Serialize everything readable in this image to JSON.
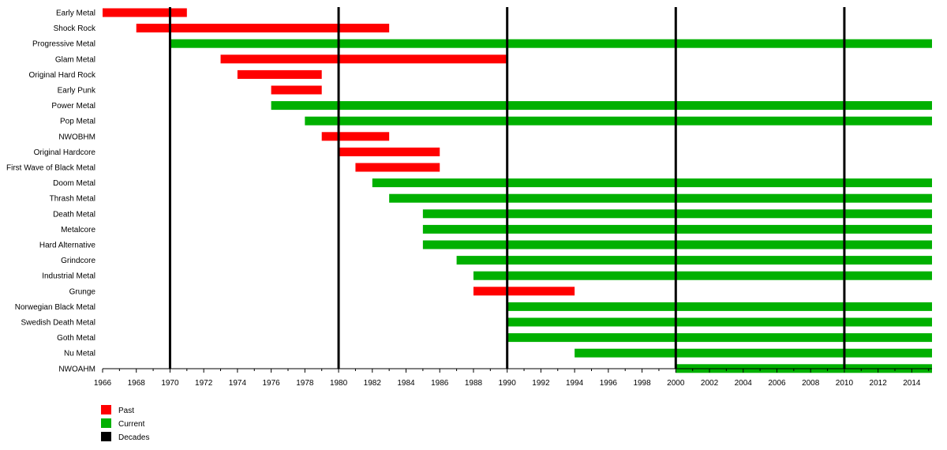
{
  "chart_data": {
    "type": "bar",
    "title": "",
    "xlabel": "",
    "ylabel": "",
    "xlim": [
      1966,
      2015.2
    ],
    "x_ticks": [
      1966,
      1968,
      1970,
      1972,
      1974,
      1976,
      1978,
      1980,
      1982,
      1984,
      1986,
      1988,
      1990,
      1992,
      1994,
      1996,
      1998,
      2000,
      2002,
      2004,
      2006,
      2008,
      2010,
      2012,
      2014
    ],
    "decade_lines": [
      1970,
      1980,
      1990,
      2000,
      2010
    ],
    "grid": false,
    "legend_position": "bottom-left",
    "colors": {
      "Past": "#ff0000",
      "Current": "#00b000",
      "Decades": "#000000"
    },
    "legend": [
      {
        "label": "Past",
        "color": "#ff0000"
      },
      {
        "label": "Current",
        "color": "#00b000"
      },
      {
        "label": "Decades",
        "color": "#000000"
      }
    ],
    "bars": [
      {
        "label": "Early Metal",
        "start": 1966,
        "end": 1971,
        "status": "Past"
      },
      {
        "label": "Shock Rock",
        "start": 1968,
        "end": 1983,
        "status": "Past"
      },
      {
        "label": "Progressive Metal",
        "start": 1970,
        "end": 2015.2,
        "status": "Current"
      },
      {
        "label": "Glam Metal",
        "start": 1973,
        "end": 1990,
        "status": "Past"
      },
      {
        "label": "Original Hard Rock",
        "start": 1974,
        "end": 1979,
        "status": "Past"
      },
      {
        "label": "Early Punk",
        "start": 1976,
        "end": 1979,
        "status": "Past"
      },
      {
        "label": "Power Metal",
        "start": 1976,
        "end": 2015.2,
        "status": "Current"
      },
      {
        "label": "Pop Metal",
        "start": 1978,
        "end": 2015.2,
        "status": "Current"
      },
      {
        "label": "NWOBHM",
        "start": 1979,
        "end": 1983,
        "status": "Past"
      },
      {
        "label": "Original Hardcore",
        "start": 1980,
        "end": 1986,
        "status": "Past"
      },
      {
        "label": "First Wave of Black Metal",
        "start": 1981,
        "end": 1986,
        "status": "Past"
      },
      {
        "label": "Doom Metal",
        "start": 1982,
        "end": 2015.2,
        "status": "Current"
      },
      {
        "label": "Thrash Metal",
        "start": 1983,
        "end": 2015.2,
        "status": "Current"
      },
      {
        "label": "Death Metal",
        "start": 1985,
        "end": 2015.2,
        "status": "Current"
      },
      {
        "label": "Metalcore",
        "start": 1985,
        "end": 2015.2,
        "status": "Current"
      },
      {
        "label": "Hard Alternative",
        "start": 1985,
        "end": 2015.2,
        "status": "Current"
      },
      {
        "label": "Grindcore",
        "start": 1987,
        "end": 2015.2,
        "status": "Current"
      },
      {
        "label": "Industrial Metal",
        "start": 1988,
        "end": 2015.2,
        "status": "Current"
      },
      {
        "label": "Grunge",
        "start": 1988,
        "end": 1994,
        "status": "Past"
      },
      {
        "label": "Norwegian Black Metal",
        "start": 1990,
        "end": 2015.2,
        "status": "Current"
      },
      {
        "label": "Swedish Death Metal",
        "start": 1990,
        "end": 2015.2,
        "status": "Current"
      },
      {
        "label": "Goth Metal",
        "start": 1990,
        "end": 2015.2,
        "status": "Current"
      },
      {
        "label": "Nu Metal",
        "start": 1994,
        "end": 2015.2,
        "status": "Current"
      },
      {
        "label": "NWOAHM",
        "start": 2000,
        "end": 2015.2,
        "status": "Current"
      }
    ]
  }
}
